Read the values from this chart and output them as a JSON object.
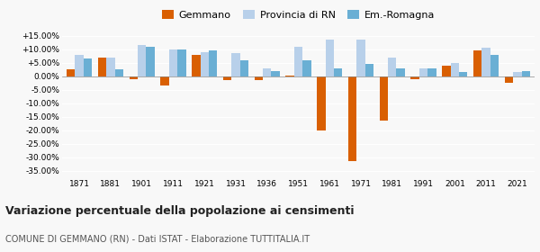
{
  "years": [
    1871,
    1881,
    1901,
    1911,
    1921,
    1931,
    1936,
    1951,
    1961,
    1971,
    1981,
    1991,
    2001,
    2011,
    2021
  ],
  "gemmano": [
    2.5,
    7.0,
    -1.0,
    -3.5,
    8.0,
    -1.5,
    -1.5,
    0.1,
    -20.0,
    -31.5,
    -16.5,
    -1.0,
    4.0,
    9.5,
    -2.5
  ],
  "provincia_rn": [
    8.0,
    7.0,
    11.5,
    10.0,
    9.0,
    8.5,
    3.0,
    11.0,
    13.5,
    13.5,
    7.0,
    3.0,
    5.0,
    10.5,
    1.5
  ],
  "emilia": [
    6.5,
    2.5,
    11.0,
    10.0,
    9.5,
    6.0,
    2.0,
    6.0,
    3.0,
    4.5,
    3.0,
    3.0,
    1.5,
    8.0,
    2.0
  ],
  "color_gemmano": "#d95f02",
  "color_provincia": "#b8d0ea",
  "color_emilia": "#6aafd4",
  "title": "Variazione percentuale della popolazione ai censimenti",
  "subtitle": "COMUNE DI GEMMANO (RN) - Dati ISTAT - Elaborazione TUTTITALIA.IT",
  "legend_labels": [
    "Gemmano",
    "Provincia di RN",
    "Em.-Romagna"
  ],
  "ylim": [
    -37,
    17
  ],
  "yticks": [
    -35,
    -30,
    -25,
    -20,
    -15,
    -10,
    -5,
    0,
    5,
    10,
    15
  ],
  "background_color": "#f8f8f8"
}
